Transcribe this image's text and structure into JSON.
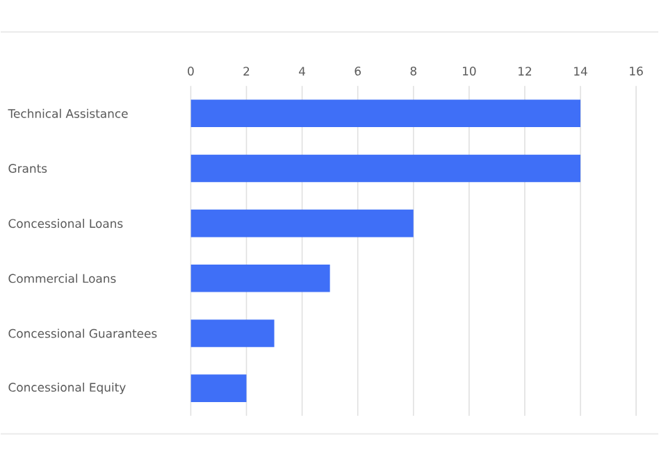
{
  "chart_data": {
    "type": "bar",
    "orientation": "horizontal",
    "categories": [
      "Technical Assistance",
      "Grants",
      "Concessional Loans",
      "Commercial Loans",
      "Concessional Guarantees",
      "Concessional Equity"
    ],
    "values": [
      14,
      14,
      8,
      5,
      3,
      2
    ],
    "color": "#3f6ff7",
    "xlim": [
      0,
      16
    ],
    "xticks": [
      0,
      2,
      4,
      6,
      8,
      10,
      12,
      14,
      16
    ],
    "grid": "x"
  }
}
